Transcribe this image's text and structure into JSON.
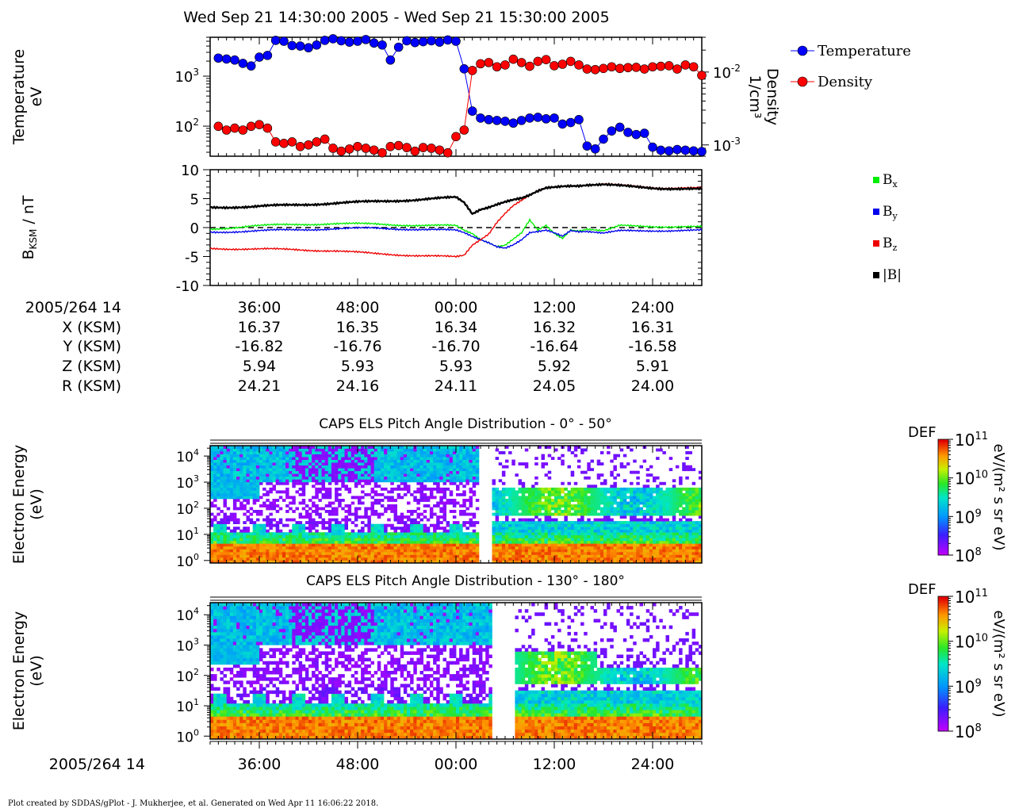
{
  "header": {
    "title": "Wed Sep 21 14:30:00 2005 - Wed Sep 21 15:30:00 2005"
  },
  "footer": {
    "credit": "Plot created by SDDAS/gPlot - J. Mukherjee, et al.  Generated on Wed Apr 11 16:06:22 2018."
  },
  "chart_data": [
    {
      "type": "line",
      "panel": "plasma",
      "title": "",
      "ylabel_left": [
        "Temperature",
        "eV"
      ],
      "ylabel_right": [
        "Density",
        "1/cm³"
      ],
      "left_axis": {
        "scale": "log",
        "range": [
          25,
          6000
        ],
        "ticks": [
          [
            "10",
            "3"
          ],
          [
            "10",
            "2"
          ]
        ],
        "tick_values": [
          1000,
          100
        ]
      },
      "right_axis": {
        "scale": "log",
        "range": [
          0.0007,
          0.03
        ],
        "ticks": [
          [
            "10",
            "-2"
          ],
          [
            "10",
            "-3"
          ]
        ],
        "tick_values": [
          0.01,
          0.001
        ]
      },
      "x_minutes_range": [
        0,
        60
      ],
      "legend": {
        "placement": "right",
        "entries": [
          "Temperature",
          "Density"
        ]
      },
      "series": [
        {
          "name": "Temperature",
          "color": "#0000ff",
          "axis": "left",
          "x": [
            1,
            2,
            3,
            4,
            5,
            6,
            7,
            8,
            9,
            10,
            11,
            12,
            13,
            14,
            15,
            16,
            17,
            18,
            19,
            20,
            21,
            22,
            23,
            24,
            25,
            26,
            27,
            28,
            29,
            30,
            31,
            32,
            33,
            34,
            35,
            36,
            37,
            38,
            39,
            40,
            41,
            42,
            43,
            44,
            45,
            46,
            47,
            48,
            49,
            50,
            51,
            52,
            53,
            54,
            55,
            56,
            57,
            58,
            59,
            60
          ],
          "values": [
            2300,
            2200,
            2100,
            1800,
            1600,
            2400,
            2600,
            5200,
            5000,
            4100,
            4000,
            3700,
            4200,
            5200,
            5600,
            5100,
            4800,
            5000,
            5400,
            4600,
            4200,
            2100,
            3800,
            5100,
            4700,
            4900,
            5100,
            4800,
            5300,
            5000,
            1400,
            200,
            145,
            135,
            130,
            125,
            115,
            130,
            145,
            150,
            140,
            145,
            110,
            118,
            135,
            40,
            35,
            55,
            80,
            95,
            75,
            68,
            72,
            38,
            33,
            32,
            34,
            33,
            32,
            31
          ]
        },
        {
          "name": "Density",
          "color": "#ff0000",
          "axis": "right",
          "x": [
            1,
            2,
            3,
            4,
            5,
            6,
            7,
            8,
            9,
            10,
            11,
            12,
            13,
            14,
            15,
            16,
            17,
            18,
            19,
            20,
            21,
            22,
            23,
            24,
            25,
            26,
            27,
            28,
            29,
            30,
            31,
            32,
            33,
            34,
            35,
            36,
            37,
            38,
            39,
            40,
            41,
            42,
            43,
            44,
            45,
            46,
            47,
            48,
            49,
            50,
            51,
            52,
            53,
            54,
            55,
            56,
            57,
            58,
            59,
            60
          ],
          "values": [
            0.0018,
            0.0016,
            0.0017,
            0.0016,
            0.0018,
            0.0019,
            0.0017,
            0.0011,
            0.00105,
            0.0011,
            0.00095,
            0.001,
            0.0011,
            0.0012,
            0.0009,
            0.00082,
            0.00088,
            0.00095,
            0.0009,
            0.00085,
            0.00078,
            0.00095,
            0.00098,
            0.00092,
            0.00082,
            0.00092,
            0.0009,
            0.00085,
            0.00078,
            0.0013,
            0.0016,
            0.0105,
            0.013,
            0.0135,
            0.0118,
            0.0125,
            0.015,
            0.0135,
            0.012,
            0.014,
            0.0148,
            0.0122,
            0.0128,
            0.014,
            0.0125,
            0.011,
            0.0108,
            0.0112,
            0.0118,
            0.0112,
            0.0115,
            0.0116,
            0.011,
            0.0118,
            0.012,
            0.0122,
            0.011,
            0.0125,
            0.0118,
            0.009
          ]
        }
      ]
    },
    {
      "type": "line",
      "panel": "magnetic_field",
      "title": "",
      "ylabel": "B_KSM / nT",
      "ylabel_main": "B",
      "ylabel_sub": "KSM",
      "ylabel_tail": " / nT",
      "yaxis": {
        "range": [
          -10,
          10
        ],
        "ticks": [
          "10",
          "5",
          "0",
          "-5",
          "-10"
        ],
        "tick_values": [
          10,
          5,
          0,
          -5,
          -10
        ]
      },
      "x_minutes_range": [
        0,
        60
      ],
      "zero_line": true,
      "legend": {
        "placement": "right",
        "entries": [
          "Bx",
          "By",
          "Bz",
          "|B|"
        ]
      },
      "series": [
        {
          "name": "Bx",
          "label_main": "B",
          "label_sub": "x",
          "color": "#00ee00",
          "x": [
            0,
            5,
            10,
            15,
            20,
            25,
            30,
            31,
            32,
            33,
            34,
            35,
            36,
            37,
            38,
            39,
            40,
            41,
            42,
            43,
            44,
            45,
            46,
            47,
            48,
            49,
            50,
            55,
            60
          ],
          "values": [
            -0.3,
            0.3,
            0.5,
            0.7,
            0.6,
            0.4,
            0.3,
            -0.5,
            -1.0,
            -2.0,
            -2.5,
            -3.2,
            -3.0,
            -2.0,
            -1.0,
            1.2,
            -0.5,
            0.3,
            -1.0,
            -1.8,
            -0.3,
            -0.5,
            -0.2,
            -0.4,
            -0.6,
            -0.2,
            0.3,
            0.2,
            0.1
          ]
        },
        {
          "name": "By",
          "label_main": "B",
          "label_sub": "y",
          "color": "#0000ee",
          "x": [
            0,
            5,
            10,
            15,
            20,
            25,
            30,
            31,
            32,
            33,
            34,
            35,
            36,
            37,
            38,
            39,
            40,
            41,
            42,
            43,
            44,
            45,
            46,
            47,
            48,
            49,
            50,
            55,
            60
          ],
          "values": [
            -0.8,
            -0.6,
            -0.4,
            -0.2,
            -0.1,
            -0.3,
            -0.5,
            -0.9,
            -1.5,
            -2.0,
            -2.5,
            -3.2,
            -3.5,
            -3.0,
            -2.2,
            -1.0,
            -0.8,
            -0.5,
            -0.9,
            -1.4,
            -0.4,
            -0.6,
            -0.6,
            -0.8,
            -1.0,
            -0.8,
            -0.6,
            -0.5,
            -0.5
          ]
        },
        {
          "name": "Bz",
          "label_main": "B",
          "label_sub": "z",
          "color": "#ee0000",
          "x": [
            0,
            5,
            10,
            15,
            20,
            25,
            30,
            31,
            32,
            33,
            34,
            35,
            36,
            37,
            38,
            39,
            40,
            41,
            42,
            43,
            44,
            45,
            46,
            47,
            48,
            49,
            50,
            55,
            60
          ],
          "values": [
            -3.6,
            -3.7,
            -3.8,
            -4.0,
            -4.5,
            -4.8,
            -5.1,
            -4.8,
            -3.0,
            -2.0,
            -1.0,
            1.0,
            2.5,
            3.8,
            4.6,
            5.5,
            6.3,
            6.8,
            7.0,
            7.2,
            7.3,
            7.3,
            7.4,
            7.4,
            7.5,
            7.4,
            7.3,
            6.9,
            6.8
          ]
        },
        {
          "name": "|B|",
          "label_main": "|B|",
          "label_sub": "",
          "color": "#000000",
          "x": [
            0,
            5,
            10,
            15,
            20,
            25,
            30,
            31,
            32,
            33,
            34,
            35,
            36,
            37,
            38,
            39,
            40,
            41,
            42,
            43,
            44,
            45,
            46,
            47,
            48,
            49,
            50,
            55,
            60
          ],
          "values": [
            3.5,
            3.6,
            3.9,
            4.2,
            4.5,
            4.8,
            5.2,
            4.3,
            2.4,
            3.2,
            3.6,
            4.1,
            4.5,
            4.8,
            5.0,
            5.5,
            6.2,
            6.8,
            7.0,
            7.2,
            7.3,
            7.3,
            7.4,
            7.4,
            7.4,
            7.3,
            7.2,
            6.8,
            6.6
          ]
        }
      ]
    },
    {
      "type": "heatmap",
      "panel": "els_low_pitch",
      "title": "CAPS ELS Pitch Angle Distribution - 0° - 50°",
      "ylabel": [
        "Electron Energy",
        "(eV)"
      ],
      "yaxis": {
        "scale": "log",
        "range": [
          0.8,
          25000
        ],
        "ticks": [
          [
            "10",
            "4"
          ],
          [
            "10",
            "3"
          ],
          [
            "10",
            "2"
          ],
          [
            "10",
            "1"
          ],
          [
            "10",
            "0"
          ]
        ],
        "tick_values": [
          10000,
          1000,
          100,
          10,
          1
        ]
      },
      "colorbar": {
        "label": "DEF",
        "units": "eV/(m² s sr eV)",
        "scale": "log",
        "range": [
          100000000.0,
          100000000000.0
        ],
        "ticks": [
          [
            "10",
            "11"
          ],
          [
            "10",
            "10"
          ],
          [
            "10",
            "9"
          ],
          [
            "10",
            "8"
          ]
        ],
        "tick_values": [
          100000000000.0,
          10000000000.0,
          1000000000.0,
          100000000.0
        ]
      },
      "data_gap_minutes": [
        33.0,
        34.4
      ]
    },
    {
      "type": "heatmap",
      "panel": "els_high_pitch",
      "title": "CAPS ELS Pitch Angle Distribution - 130° - 180°",
      "ylabel": [
        "Electron Energy",
        "(eV)"
      ],
      "yaxis": {
        "scale": "log",
        "range": [
          0.8,
          25000
        ],
        "ticks": [
          [
            "10",
            "4"
          ],
          [
            "10",
            "3"
          ],
          [
            "10",
            "2"
          ],
          [
            "10",
            "1"
          ],
          [
            "10",
            "0"
          ]
        ],
        "tick_values": [
          10000,
          1000,
          100,
          10,
          1
        ]
      },
      "colorbar": {
        "label": "DEF",
        "units": "eV/(m² s sr eV)",
        "scale": "log",
        "range": [
          100000000.0,
          100000000000.0
        ],
        "ticks": [
          [
            "10",
            "11"
          ],
          [
            "10",
            "10"
          ],
          [
            "10",
            "9"
          ],
          [
            "10",
            "8"
          ]
        ],
        "tick_values": [
          100000000000.0,
          10000000000.0,
          1000000000.0,
          100000000.0
        ]
      },
      "data_gap_minutes": [
        34.2,
        37.0
      ]
    }
  ],
  "ephemeris": {
    "labels": [
      "2005/264 14",
      "X (KSM)",
      "Y (KSM)",
      "Z (KSM)",
      "R (KSM)"
    ],
    "columns": [
      {
        "time": "36:00",
        "x": "16.37",
        "y": "-16.82",
        "z": "5.94",
        "r": "24.21"
      },
      {
        "time": "48:00",
        "x": "16.35",
        "y": "-16.76",
        "z": "5.93",
        "r": "24.16"
      },
      {
        "time": "00:00",
        "x": "16.34",
        "y": "-16.70",
        "z": "5.93",
        "r": "24.11"
      },
      {
        "time": "12:00",
        "x": "16.32",
        "y": "-16.64",
        "z": "5.92",
        "r": "24.05"
      },
      {
        "time": "24:00",
        "x": "16.31",
        "y": "-16.58",
        "z": "5.91",
        "r": "24.00"
      }
    ]
  },
  "bottom_axis": {
    "date_label": "2005/264 14",
    "ticks": [
      "36:00",
      "48:00",
      "00:00",
      "12:00",
      "24:00"
    ],
    "tick_minutes": [
      6,
      18,
      30,
      42,
      54
    ]
  },
  "colors": {
    "temperature": "#0000ff",
    "density": "#ff0000",
    "bx": "#00ee00",
    "by": "#0000ee",
    "bz": "#ee0000",
    "btotal": "#000000"
  }
}
